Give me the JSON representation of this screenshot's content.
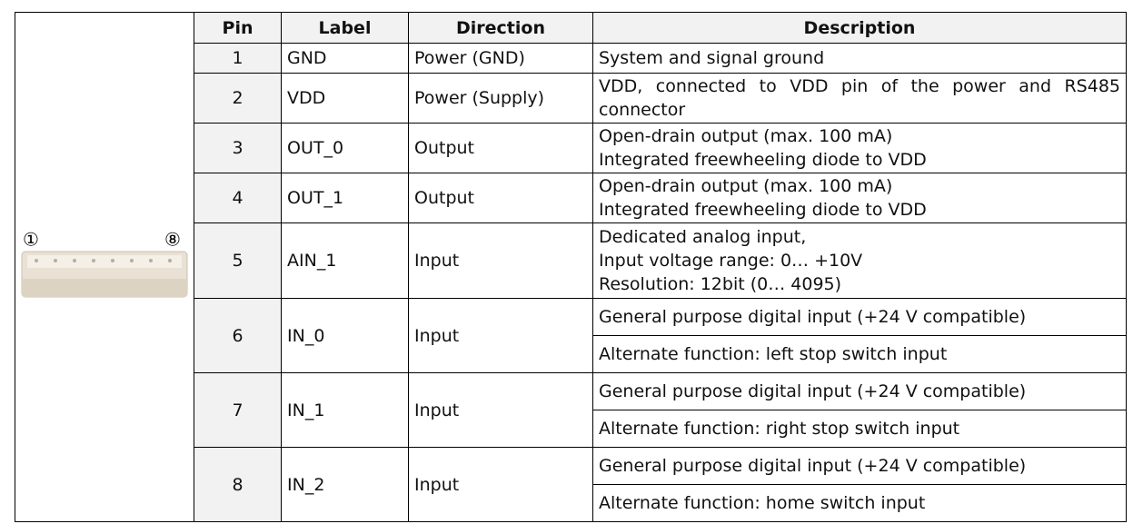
{
  "connector": {
    "pin_labels": [
      "①",
      "⑧"
    ]
  },
  "header": {
    "columns": [
      "Pin",
      "Label",
      "Direction",
      "Description"
    ]
  },
  "table": {
    "rows": [
      {
        "pin": "1",
        "label": "GND",
        "direction": "Power (GND)",
        "description": [
          "System and signal ground"
        ]
      },
      {
        "pin": "2",
        "label": "VDD",
        "direction": "Power (Supply)",
        "description": [
          "VDD, connected to VDD pin of the power and RS485 connector"
        ]
      },
      {
        "pin": "3",
        "label": "OUT_0",
        "direction": "Output",
        "description": [
          "Open-drain output (max. 100 mA)",
          "Integrated freewheeling diode to VDD"
        ]
      },
      {
        "pin": "4",
        "label": "OUT_1",
        "direction": "Output",
        "description": [
          "Open-drain output (max. 100 mA)",
          "Integrated freewheeling diode to VDD"
        ]
      },
      {
        "pin": "5",
        "label": "AIN_1",
        "direction": "Input",
        "description": [
          "Dedicated analog input,",
          "Input voltage range: 0… +10V",
          "Resolution: 12bit (0… 4095)"
        ]
      },
      {
        "pin": "6",
        "label": "IN_0",
        "direction": "Input",
        "description_cells": [
          "General purpose digital input (+24 V compatible)",
          "Alternate function: left stop switch input"
        ]
      },
      {
        "pin": "7",
        "label": "IN_1",
        "direction": "Input",
        "description_cells": [
          "General purpose digital input (+24 V compatible)",
          "Alternate function: right stop switch input"
        ]
      },
      {
        "pin": "8",
        "label": "IN_2",
        "direction": "Input",
        "description_cells": [
          "General purpose digital input (+24 V compatible)",
          "Alternate function: home switch input"
        ]
      }
    ]
  }
}
